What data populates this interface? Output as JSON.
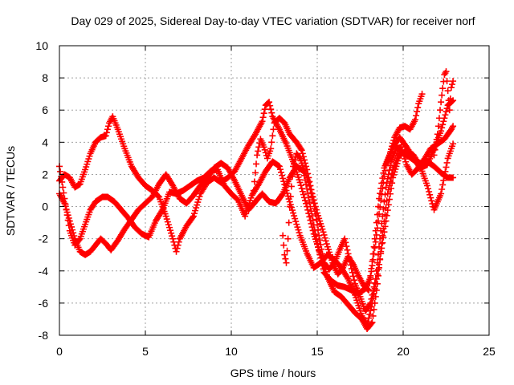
{
  "chart_data": {
    "type": "scatter",
    "title": "Day 029 of 2025, Sidereal Day-to-day VTEC variation (SDTVAR) for receiver norf",
    "xlabel": "GPS time / hours",
    "ylabel": "SDTVAR / TECUs",
    "xlim": [
      0,
      25
    ],
    "ylim": [
      -8,
      10
    ],
    "x_ticks": [
      0,
      5,
      10,
      15,
      20,
      25
    ],
    "y_ticks": [
      -8,
      -6,
      -4,
      -2,
      0,
      2,
      4,
      6,
      8,
      10
    ],
    "x_tick_labels": [
      "0",
      "5",
      "10",
      "15",
      "20",
      "25"
    ],
    "y_tick_labels": [
      "-8",
      "-6",
      "-4",
      "-2",
      "0",
      "2",
      "4",
      "6",
      "8",
      "10"
    ],
    "grid": true,
    "marker": "plus",
    "color": "#ff0000",
    "series": [
      {
        "name": "",
        "values": [
          [
            0.0,
            1.6
          ],
          [
            0.3,
            2.0
          ],
          [
            0.6,
            1.8
          ],
          [
            0.9,
            1.2
          ],
          [
            1.2,
            1.4
          ],
          [
            1.5,
            2.3
          ],
          [
            1.8,
            3.3
          ],
          [
            2.1,
            4.0
          ],
          [
            2.4,
            4.3
          ],
          [
            2.7,
            4.4
          ],
          [
            2.9,
            5.2
          ],
          [
            3.1,
            5.6
          ],
          [
            3.4,
            4.8
          ],
          [
            3.8,
            3.6
          ],
          [
            4.2,
            2.5
          ],
          [
            4.6,
            1.8
          ],
          [
            5.0,
            1.3
          ],
          [
            5.4,
            1.0
          ],
          [
            5.8,
            0.6
          ],
          [
            6.2,
            -0.6
          ],
          [
            6.6,
            -2.0
          ],
          [
            6.8,
            -2.8
          ],
          [
            7.0,
            -2.0
          ],
          [
            7.4,
            -1.2
          ],
          [
            7.8,
            -0.6
          ],
          [
            8.2,
            0.8
          ],
          [
            8.6,
            1.5
          ],
          [
            9.0,
            1.8
          ],
          [
            9.4,
            1.5
          ],
          [
            9.8,
            1.8
          ],
          [
            10.2,
            2.2
          ],
          [
            10.6,
            3.0
          ],
          [
            11.0,
            3.8
          ],
          [
            11.4,
            4.5
          ],
          [
            11.8,
            5.3
          ],
          [
            12.0,
            6.3
          ],
          [
            12.2,
            6.5
          ],
          [
            12.4,
            5.6
          ],
          [
            12.8,
            4.8
          ],
          [
            13.2,
            3.9
          ],
          [
            13.6,
            2.8
          ],
          [
            14.0,
            1.5
          ],
          [
            14.4,
            0.0
          ],
          [
            14.8,
            -1.7
          ],
          [
            15.2,
            -3.0
          ],
          [
            15.6,
            -4.4
          ],
          [
            16.0,
            -5.3
          ],
          [
            16.4,
            -5.6
          ],
          [
            16.8,
            -6.1
          ],
          [
            17.2,
            -6.6
          ],
          [
            17.6,
            -7.0
          ],
          [
            17.9,
            -7.6
          ],
          [
            18.2,
            -7.2
          ],
          [
            18.5,
            -4.8
          ],
          [
            18.8,
            -1.8
          ],
          [
            19.1,
            0.8
          ],
          [
            19.4,
            2.3
          ],
          [
            19.8,
            3.4
          ],
          [
            20.2,
            3.2
          ],
          [
            20.6,
            2.9
          ],
          [
            21.0,
            2.7
          ],
          [
            21.4,
            2.8
          ],
          [
            21.8,
            2.5
          ],
          [
            22.2,
            2.1
          ],
          [
            22.6,
            1.8
          ],
          [
            22.9,
            1.8
          ]
        ]
      },
      {
        "name": "",
        "values": [
          [
            0.0,
            0.8
          ],
          [
            0.3,
            0.2
          ],
          [
            0.6,
            -0.9
          ],
          [
            0.9,
            -2.0
          ],
          [
            1.2,
            -2.8
          ],
          [
            1.5,
            -3.0
          ],
          [
            1.8,
            -2.8
          ],
          [
            2.1,
            -2.4
          ],
          [
            2.4,
            -2.0
          ],
          [
            2.7,
            -2.3
          ],
          [
            3.0,
            -2.7
          ],
          [
            3.4,
            -2.1
          ],
          [
            3.8,
            -1.4
          ],
          [
            4.2,
            -0.8
          ],
          [
            4.6,
            -0.2
          ],
          [
            5.0,
            0.2
          ],
          [
            5.4,
            0.6
          ],
          [
            5.8,
            1.4
          ],
          [
            6.2,
            2.0
          ],
          [
            6.6,
            1.3
          ],
          [
            7.0,
            0.5
          ],
          [
            7.4,
            0.2
          ],
          [
            7.8,
            0.7
          ],
          [
            8.2,
            1.3
          ],
          [
            8.6,
            1.8
          ],
          [
            9.0,
            2.4
          ],
          [
            9.4,
            2.7
          ],
          [
            9.8,
            2.4
          ],
          [
            10.2,
            1.6
          ],
          [
            10.6,
            0.7
          ],
          [
            11.0,
            -0.2
          ],
          [
            11.4,
            0.3
          ],
          [
            11.8,
            0.8
          ],
          [
            12.2,
            0.3
          ],
          [
            12.6,
            0.2
          ],
          [
            13.0,
            0.8
          ],
          [
            13.4,
            1.8
          ],
          [
            13.8,
            2.5
          ],
          [
            14.2,
            2.2
          ],
          [
            14.6,
            0.0
          ],
          [
            15.0,
            -2.3
          ],
          [
            15.4,
            -4.1
          ],
          [
            15.8,
            -4.6
          ],
          [
            16.2,
            -4.9
          ],
          [
            16.6,
            -5.0
          ],
          [
            17.0,
            -5.2
          ],
          [
            17.4,
            -5.4
          ],
          [
            17.8,
            -5.1
          ],
          [
            18.1,
            -4.4
          ],
          [
            18.4,
            -2.2
          ],
          [
            18.7,
            0.4
          ],
          [
            19.0,
            2.6
          ],
          [
            19.4,
            3.7
          ],
          [
            19.8,
            4.3
          ],
          [
            20.2,
            3.7
          ],
          [
            20.6,
            3.0
          ],
          [
            21.0,
            2.4
          ],
          [
            21.4,
            2.6
          ],
          [
            21.8,
            3.6
          ],
          [
            22.2,
            4.7
          ],
          [
            22.6,
            6.3
          ],
          [
            22.9,
            6.6
          ]
        ]
      },
      {
        "name": "",
        "values": [
          [
            0.0,
            2.5
          ],
          [
            0.2,
            1.2
          ],
          [
            0.4,
            -0.2
          ],
          [
            0.6,
            -1.5
          ],
          [
            0.9,
            -2.4
          ],
          [
            1.2,
            -2.0
          ],
          [
            1.5,
            -1.1
          ],
          [
            1.8,
            -0.2
          ],
          [
            2.1,
            0.3
          ],
          [
            2.5,
            0.6
          ],
          [
            2.8,
            0.6
          ],
          [
            3.2,
            0.3
          ],
          [
            3.6,
            -0.2
          ],
          [
            4.0,
            -0.7
          ],
          [
            4.4,
            -1.3
          ],
          [
            4.8,
            -1.7
          ],
          [
            5.2,
            -1.9
          ],
          [
            5.6,
            -0.9
          ],
          [
            6.0,
            -0.2
          ],
          [
            6.4,
            0.9
          ],
          [
            6.8,
            0.8
          ],
          [
            7.2,
            1.0
          ],
          [
            7.6,
            1.3
          ],
          [
            8.0,
            1.6
          ],
          [
            8.4,
            1.8
          ],
          [
            8.8,
            2.2
          ],
          [
            9.2,
            2.3
          ],
          [
            9.6,
            1.3
          ],
          [
            10.0,
            0.8
          ],
          [
            10.4,
            0.4
          ],
          [
            10.8,
            -0.6
          ],
          [
            11.2,
            0.7
          ],
          [
            11.6,
            1.4
          ],
          [
            12.0,
            2.2
          ],
          [
            12.4,
            2.8
          ],
          [
            12.8,
            2.5
          ],
          [
            13.2,
            1.0
          ],
          [
            13.6,
            -0.4
          ],
          [
            14.0,
            -1.8
          ],
          [
            14.4,
            -2.9
          ],
          [
            14.8,
            -3.8
          ],
          [
            15.2,
            -3.5
          ],
          [
            15.6,
            -3.0
          ],
          [
            16.0,
            -3.3
          ],
          [
            16.4,
            -3.8
          ],
          [
            16.8,
            -4.5
          ],
          [
            17.2,
            -5.5
          ],
          [
            17.6,
            -6.8
          ],
          [
            17.9,
            -7.4
          ],
          [
            18.2,
            -6.0
          ],
          [
            18.6,
            -3.6
          ],
          [
            19.0,
            -0.9
          ],
          [
            19.4,
            1.8
          ],
          [
            19.8,
            3.2
          ],
          [
            20.2,
            3.5
          ],
          [
            20.6,
            3.2
          ],
          [
            21.0,
            2.5
          ],
          [
            21.4,
            1.3
          ],
          [
            21.8,
            -0.2
          ],
          [
            22.2,
            0.8
          ],
          [
            22.6,
            3.0
          ],
          [
            22.9,
            3.9
          ]
        ]
      },
      {
        "name": "",
        "values": [
          [
            11.3,
            1.0
          ],
          [
            11.5,
            3.2
          ],
          [
            11.7,
            4.2
          ],
          [
            11.9,
            3.7
          ],
          [
            12.1,
            3.0
          ],
          [
            12.3,
            3.6
          ],
          [
            12.5,
            5.2
          ],
          [
            12.8,
            5.5
          ],
          [
            13.1,
            5.2
          ],
          [
            13.4,
            4.5
          ],
          [
            13.8,
            4.0
          ],
          [
            14.1,
            3.5
          ],
          [
            14.4,
            2.3
          ],
          [
            14.7,
            0.8
          ],
          [
            15.0,
            -0.4
          ],
          [
            15.3,
            -1.4
          ],
          [
            15.6,
            -2.5
          ],
          [
            15.9,
            -3.5
          ],
          [
            16.2,
            -4.2
          ],
          [
            16.5,
            -3.8
          ],
          [
            16.8,
            -3.1
          ],
          [
            17.1,
            -3.6
          ],
          [
            17.4,
            -4.3
          ],
          [
            17.7,
            -4.9
          ],
          [
            18.0,
            -5.2
          ],
          [
            18.3,
            -2.5
          ],
          [
            18.6,
            0.5
          ],
          [
            18.9,
            2.4
          ],
          [
            19.2,
            3.2
          ],
          [
            19.5,
            4.3
          ],
          [
            19.8,
            4.9
          ],
          [
            20.1,
            5.0
          ],
          [
            20.4,
            4.8
          ],
          [
            20.7,
            5.4
          ],
          [
            20.9,
            6.4
          ],
          [
            21.1,
            7.0
          ]
        ]
      },
      {
        "name": "",
        "values": [
          [
            13.0,
            -1.8
          ],
          [
            13.1,
            -3.0
          ],
          [
            13.2,
            -3.5
          ],
          [
            13.3,
            -2.0
          ],
          [
            13.4,
            0.0
          ],
          [
            13.6,
            2.5
          ],
          [
            13.8,
            3.3
          ],
          [
            14.0,
            3.0
          ],
          [
            14.2,
            2.4
          ],
          [
            14.5,
            1.5
          ],
          [
            14.8,
            0.2
          ],
          [
            15.1,
            -1.8
          ],
          [
            15.4,
            -3.5
          ],
          [
            15.7,
            -3.9
          ],
          [
            16.0,
            -3.5
          ],
          [
            16.3,
            -2.7
          ],
          [
            16.6,
            -2.0
          ],
          [
            16.9,
            -3.4
          ],
          [
            17.2,
            -4.8
          ],
          [
            17.5,
            -5.6
          ],
          [
            17.8,
            -6.5
          ],
          [
            18.1,
            -6.0
          ],
          [
            18.4,
            -4.5
          ],
          [
            18.7,
            -1.5
          ],
          [
            19.0,
            1.2
          ],
          [
            19.3,
            2.8
          ],
          [
            19.6,
            3.6
          ],
          [
            19.9,
            3.7
          ],
          [
            20.2,
            2.6
          ],
          [
            20.5,
            2.0
          ],
          [
            20.8,
            2.3
          ],
          [
            21.2,
            2.9
          ],
          [
            21.6,
            3.6
          ],
          [
            22.0,
            3.9
          ],
          [
            22.4,
            4.2
          ],
          [
            22.8,
            4.8
          ],
          [
            22.9,
            5.0
          ]
        ]
      },
      {
        "name": "",
        "values": [
          [
            21.8,
            3.2
          ],
          [
            22.0,
            4.5
          ],
          [
            22.2,
            6.5
          ],
          [
            22.4,
            8.2
          ],
          [
            22.5,
            8.4
          ],
          [
            22.6,
            7.2
          ],
          [
            22.7,
            6.0
          ],
          [
            22.8,
            7.4
          ],
          [
            22.9,
            7.8
          ]
        ]
      }
    ]
  }
}
